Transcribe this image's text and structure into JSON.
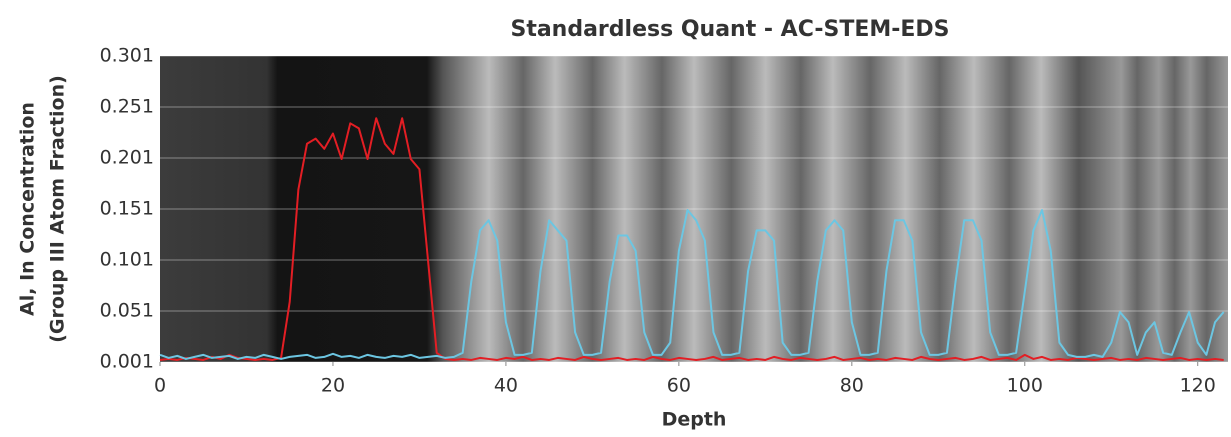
{
  "chart_data": {
    "type": "line",
    "title": "Standardless Quant - AC-STEM-EDS",
    "xlabel": "Depth",
    "ylabel": [
      "Al, In Concentration",
      "(Group III Atom Fraction)"
    ],
    "x": [
      0,
      1,
      2,
      3,
      4,
      5,
      6,
      7,
      8,
      9,
      10,
      11,
      12,
      13,
      14,
      15,
      16,
      17,
      18,
      19,
      20,
      21,
      22,
      23,
      24,
      25,
      26,
      27,
      28,
      29,
      30,
      31,
      32,
      33,
      34,
      35,
      36,
      37,
      38,
      39,
      40,
      41,
      42,
      43,
      44,
      45,
      46,
      47,
      48,
      49,
      50,
      51,
      52,
      53,
      54,
      55,
      56,
      57,
      58,
      59,
      60,
      61,
      62,
      63,
      64,
      65,
      66,
      67,
      68,
      69,
      70,
      71,
      72,
      73,
      74,
      75,
      76,
      77,
      78,
      79,
      80,
      81,
      82,
      83,
      84,
      85,
      86,
      87,
      88,
      89,
      90,
      91,
      92,
      93,
      94,
      95,
      96,
      97,
      98,
      99,
      100,
      101,
      102,
      103,
      104,
      105,
      106,
      107,
      108,
      109,
      110,
      111,
      112,
      113,
      114,
      115,
      116,
      117,
      118,
      119,
      120,
      121,
      122,
      123
    ],
    "series": [
      {
        "color": "#e31e24",
        "values": [
          0.003,
          0.004,
          0.003,
          0.005,
          0.004,
          0.003,
          0.006,
          0.004,
          0.008,
          0.005,
          0.004,
          0.003,
          0.004,
          0.003,
          0.005,
          0.06,
          0.17,
          0.215,
          0.22,
          0.21,
          0.225,
          0.2,
          0.235,
          0.23,
          0.2,
          0.24,
          0.215,
          0.205,
          0.24,
          0.2,
          0.19,
          0.1,
          0.01,
          0.004,
          0.003,
          0.004,
          0.003,
          0.005,
          0.004,
          0.003,
          0.005,
          0.004,
          0.006,
          0.003,
          0.004,
          0.003,
          0.005,
          0.004,
          0.003,
          0.006,
          0.004,
          0.003,
          0.004,
          0.005,
          0.003,
          0.004,
          0.003,
          0.006,
          0.004,
          0.003,
          0.005,
          0.004,
          0.003,
          0.004,
          0.006,
          0.003,
          0.004,
          0.005,
          0.003,
          0.004,
          0.003,
          0.006,
          0.004,
          0.003,
          0.005,
          0.004,
          0.003,
          0.004,
          0.006,
          0.003,
          0.004,
          0.005,
          0.003,
          0.004,
          0.003,
          0.005,
          0.004,
          0.003,
          0.006,
          0.004,
          0.003,
          0.004,
          0.005,
          0.003,
          0.004,
          0.006,
          0.003,
          0.004,
          0.005,
          0.003,
          0.008,
          0.004,
          0.006,
          0.003,
          0.004,
          0.003,
          0.005,
          0.004,
          0.003,
          0.004,
          0.005,
          0.003,
          0.004,
          0.003,
          0.005,
          0.004,
          0.003,
          0.004,
          0.005,
          0.003,
          0.004,
          0.003,
          0.004,
          0.003
        ]
      },
      {
        "color": "#6cc6e2",
        "values": [
          0.008,
          0.005,
          0.007,
          0.004,
          0.006,
          0.008,
          0.005,
          0.006,
          0.007,
          0.004,
          0.006,
          0.005,
          0.008,
          0.006,
          0.004,
          0.006,
          0.007,
          0.008,
          0.005,
          0.006,
          0.009,
          0.006,
          0.007,
          0.005,
          0.008,
          0.006,
          0.005,
          0.007,
          0.006,
          0.008,
          0.005,
          0.006,
          0.007,
          0.005,
          0.006,
          0.01,
          0.08,
          0.13,
          0.14,
          0.12,
          0.04,
          0.008,
          0.008,
          0.01,
          0.09,
          0.14,
          0.13,
          0.12,
          0.03,
          0.008,
          0.008,
          0.01,
          0.08,
          0.125,
          0.125,
          0.11,
          0.03,
          0.008,
          0.008,
          0.02,
          0.11,
          0.15,
          0.14,
          0.12,
          0.03,
          0.008,
          0.008,
          0.01,
          0.09,
          0.13,
          0.13,
          0.12,
          0.02,
          0.008,
          0.008,
          0.01,
          0.08,
          0.13,
          0.14,
          0.13,
          0.04,
          0.008,
          0.008,
          0.01,
          0.09,
          0.14,
          0.14,
          0.12,
          0.03,
          0.008,
          0.008,
          0.01,
          0.08,
          0.14,
          0.14,
          0.12,
          0.03,
          0.008,
          0.008,
          0.01,
          0.07,
          0.13,
          0.15,
          0.11,
          0.02,
          0.008,
          0.006,
          0.006,
          0.008,
          0.006,
          0.02,
          0.05,
          0.04,
          0.008,
          0.03,
          0.04,
          0.01,
          0.008,
          0.03,
          0.05,
          0.02,
          0.008,
          0.04,
          0.05
        ]
      }
    ],
    "xlim": [
      0,
      123.5
    ],
    "xticks": [
      0,
      20,
      40,
      60,
      80,
      100,
      120
    ],
    "ylim": [
      0.001,
      0.301
    ],
    "yticks": [
      0.001,
      0.051,
      0.101,
      0.151,
      0.201,
      0.251,
      0.301
    ],
    "grid": true
  }
}
